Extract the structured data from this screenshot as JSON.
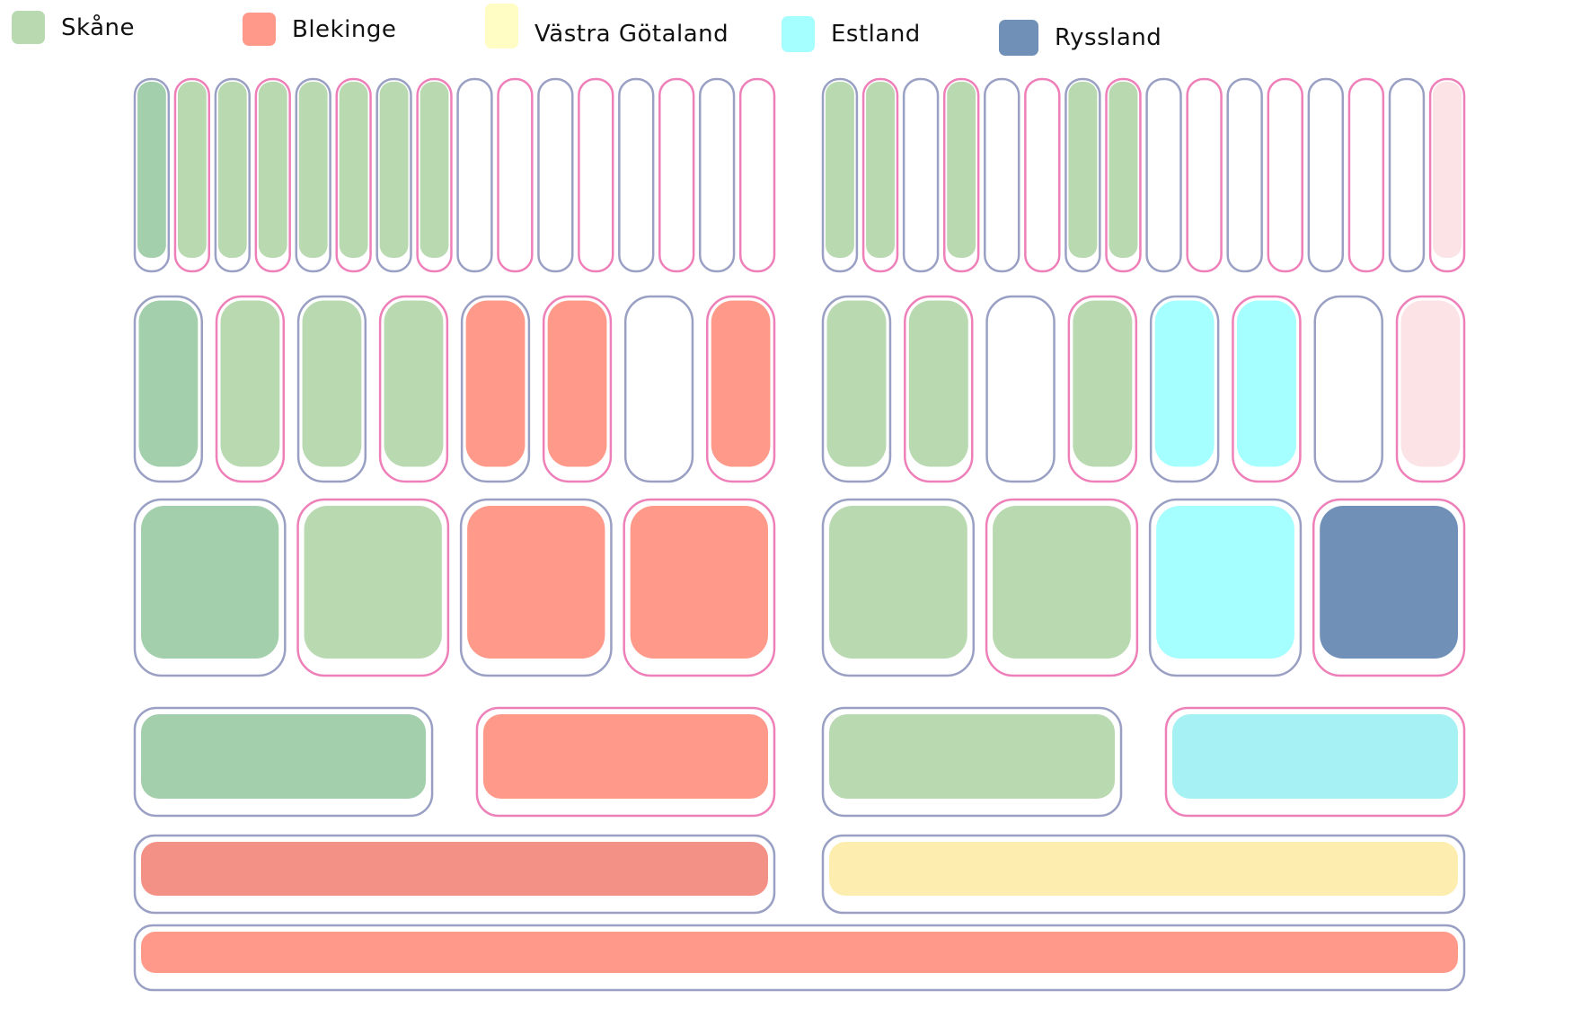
{
  "legend": [
    {
      "id": "skane",
      "label": "Skåne",
      "color": "#b9d9b1"
    },
    {
      "id": "blekinge",
      "label": "Blekinge",
      "color": "#ff9a8a"
    },
    {
      "id": "vastra",
      "label": "Västra Götaland",
      "color": "#fffdc4"
    },
    {
      "id": "estland",
      "label": "Estland",
      "color": "#a5ffff"
    },
    {
      "id": "ryssland",
      "label": "Ryssland",
      "color": "#7090b8"
    }
  ],
  "colors": {
    "frame_a": "#9aa0c4",
    "frame_b": "#ee7fb8",
    "empty": "#ffffff",
    "skane_dark": "#a3cfad",
    "blekinge_dark": "#f39187",
    "estland_pale": "#a6f1f3",
    "vastra_fill": "#fdeeb0",
    "blekinge_pale": "#fbe3e6"
  },
  "rounds": [
    {
      "id": "round-64",
      "left": [
        "skane_dark",
        "skane",
        "skane",
        "skane",
        "skane",
        "skane",
        "skane",
        "skane",
        "empty",
        "empty",
        "empty",
        "empty",
        "empty",
        "empty",
        "empty",
        "empty"
      ],
      "right": [
        "skane",
        "skane",
        "empty",
        "skane",
        "empty",
        "empty",
        "skane",
        "skane",
        "empty",
        "empty",
        "empty",
        "empty",
        "empty",
        "empty",
        "empty",
        "blekinge_pale"
      ]
    },
    {
      "id": "round-32",
      "left": [
        "skane_dark",
        "skane",
        "skane",
        "skane",
        "blekinge",
        "blekinge",
        "empty",
        "blekinge"
      ],
      "right": [
        "skane",
        "skane",
        "empty",
        "skane",
        "estland",
        "estland",
        "empty",
        "blekinge_pale"
      ]
    },
    {
      "id": "round-16",
      "left": [
        "skane_dark",
        "skane",
        "blekinge",
        "blekinge"
      ],
      "right": [
        "skane",
        "skane",
        "estland",
        "ryssland"
      ]
    },
    {
      "id": "quarterfinal",
      "left": [
        "skane_dark",
        "blekinge"
      ],
      "right": [
        "skane",
        "estland_pale"
      ]
    },
    {
      "id": "semifinal",
      "left": [
        "blekinge_dark"
      ],
      "right": [
        "vastra_fill"
      ]
    },
    {
      "id": "final",
      "full": [
        "blekinge"
      ]
    }
  ]
}
